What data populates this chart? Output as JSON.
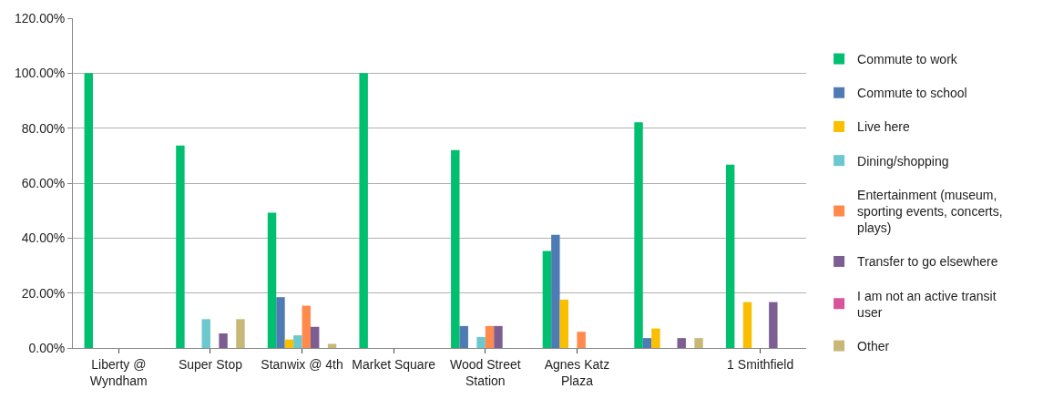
{
  "chart_data": {
    "type": "bar",
    "categories": [
      "Liberty @ Wyndham",
      "Super Stop",
      "Stanwix @ 4th",
      "Market Square",
      "Wood Street Station",
      "Agnes Katz Plaza",
      null,
      "1 Smithfield"
    ],
    "series": [
      {
        "name": "Commute to work",
        "color": "#00bf6f",
        "values": [
          100,
          73.7,
          49.2,
          100,
          72,
          35.3,
          82.1,
          66.7
        ]
      },
      {
        "name": "Commute to school",
        "color": "#4f7bb4",
        "values": [
          0,
          0,
          18.5,
          0,
          8,
          41.2,
          3.6,
          0
        ]
      },
      {
        "name": "Live here",
        "color": "#f9bf00",
        "values": [
          0,
          0,
          3.1,
          0,
          0,
          17.6,
          7.1,
          16.7
        ]
      },
      {
        "name": "Dining/shopping",
        "color": "#6cc8cf",
        "values": [
          0,
          10.5,
          4.6,
          0,
          4,
          0,
          0,
          0
        ]
      },
      {
        "name": "Entertainment (museum, sporting events, concerts, plays)",
        "color": "#ff8a4c",
        "values": [
          0,
          0,
          15.4,
          0,
          8,
          5.9,
          0,
          0
        ]
      },
      {
        "name": "Transfer to go elsewhere",
        "color": "#7d5e92",
        "values": [
          0,
          5.3,
          7.7,
          0,
          8,
          0,
          3.6,
          16.7
        ]
      },
      {
        "name": "I am not an active transit user",
        "color": "#d9559b",
        "values": [
          0,
          0,
          0,
          0,
          0,
          0,
          0,
          0
        ]
      },
      {
        "name": "Other",
        "color": "#c8b878",
        "values": [
          0,
          10.5,
          1.5,
          0,
          0,
          0,
          3.6,
          0
        ]
      }
    ],
    "ylim": [
      0,
      120
    ],
    "yticks": [
      {
        "value": 0,
        "label": "0.00%"
      },
      {
        "value": 20,
        "label": "20.00%"
      },
      {
        "value": 40,
        "label": "40.00%"
      },
      {
        "value": 60,
        "label": "60.00%"
      },
      {
        "value": 80,
        "label": "80.00%"
      },
      {
        "value": 100,
        "label": "100.00%"
      },
      {
        "value": 120,
        "label": "120.00%"
      }
    ],
    "grid": "y",
    "legend": "right"
  }
}
